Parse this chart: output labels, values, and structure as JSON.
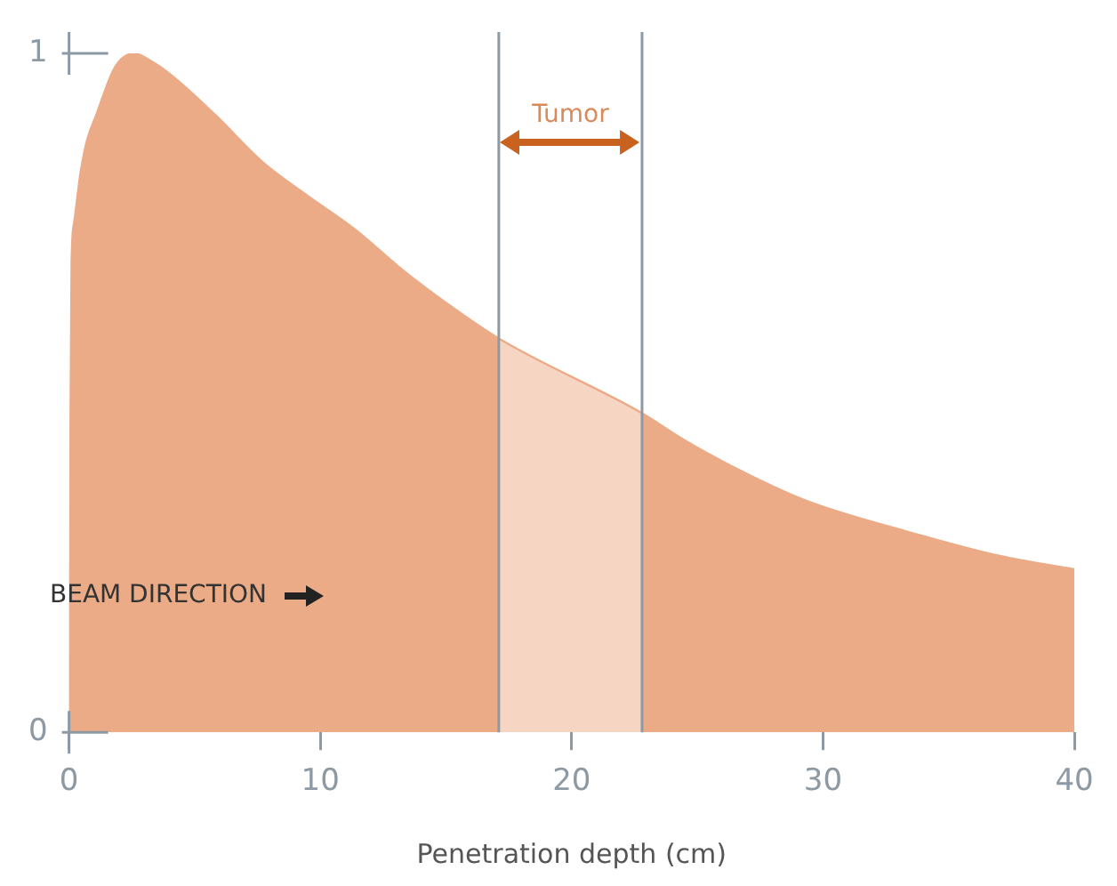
{
  "chart_data": {
    "type": "area",
    "xlabel": "Penetration depth (cm)",
    "x": [
      0,
      0.05,
      0.1,
      0.2,
      0.44,
      0.7,
      1.09,
      1.83,
      2.6,
      3.2,
      4.0,
      5.8,
      7.7,
      9.5,
      11.4,
      13.3,
      15.1,
      17.1,
      22.8,
      24.5,
      27,
      29.4,
      33.9,
      37,
      40
    ],
    "series": [
      {
        "color": "#ecab87",
        "values": [
          0,
          0.4,
          0.69,
          0.75,
          0.82,
          0.87,
          0.91,
          0.98,
          1.0,
          0.99,
          0.97,
          0.91,
          0.84,
          0.79,
          0.74,
          0.68,
          0.63,
          0.58,
          0.47,
          0.43,
          0.38,
          0.34,
          0.29,
          0.26,
          0.24
        ]
      }
    ],
    "xlim": [
      0,
      40
    ],
    "xticks": [
      0,
      10,
      20,
      30,
      40
    ],
    "ylim": [
      0,
      1
    ],
    "yticks": [
      0,
      1
    ],
    "grid": false,
    "legend": false,
    "bands": [
      {
        "axis": "x",
        "from": 17.1,
        "to": 22.8,
        "color": "#f6d5c3"
      }
    ],
    "ref_lines": [
      {
        "axis": "x",
        "value": 17.1,
        "color": "#8d9aa3"
      },
      {
        "axis": "x",
        "value": 22.8,
        "color": "#8d9aa3"
      }
    ],
    "annotations": [
      "BEAM DIRECTION",
      "Tumor"
    ]
  }
}
